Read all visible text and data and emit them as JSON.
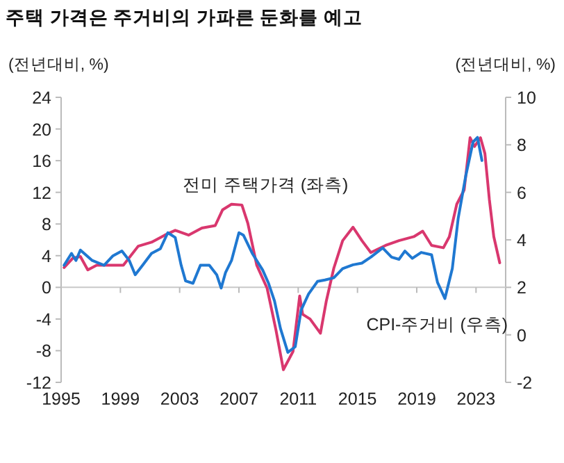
{
  "chart_data": {
    "type": "line",
    "title": "주택 가격은 주거비의 가파른 둔화를 예고",
    "ylabel": "(전년대비, %)",
    "y2label": "(전년대비, %)",
    "xlim": [
      1995,
      2025
    ],
    "xticks": [
      1995,
      1999,
      2003,
      2007,
      2011,
      2015,
      2019,
      2023
    ],
    "ylim": [
      -12,
      24
    ],
    "yticks": [
      -12,
      -8,
      -4,
      0,
      4,
      8,
      12,
      16,
      20,
      24
    ],
    "y2lim": [
      -2,
      10
    ],
    "y2ticks": [
      -2,
      0,
      2,
      4,
      6,
      8,
      10
    ],
    "ref_lines": [
      {
        "axis": "y",
        "value": 0,
        "color": "#c8c8c8"
      }
    ],
    "series": [
      {
        "name": "전미 주택가격 (좌측)",
        "color": "#d9376e",
        "x": [
          1995.2,
          1995.8,
          1996.3,
          1996.8,
          1997.4,
          1998.3,
          1999.2,
          2000.2,
          2001.1,
          2002.0,
          2002.7,
          2003.6,
          2004.5,
          2005.4,
          2005.9,
          2006.5,
          2007.2,
          2007.6,
          2008.2,
          2008.9,
          2009.5,
          2010.0,
          2010.65,
          2011.1,
          2011.3,
          2011.8,
          2012.5,
          2012.9,
          2013.4,
          2014.0,
          2014.7,
          2015.3,
          2015.9,
          2016.9,
          2017.8,
          2018.8,
          2019.4,
          2020.0,
          2020.8,
          2021.2,
          2021.7,
          2022.2,
          2022.6,
          2022.9,
          2023.3,
          2023.6,
          2023.9,
          2024.2,
          2024.6
        ],
        "values": [
          2.5,
          3.7,
          3.9,
          2.2,
          2.8,
          2.8,
          2.8,
          5.2,
          5.7,
          6.6,
          7.2,
          6.6,
          7.5,
          7.8,
          9.8,
          10.5,
          10.4,
          8.1,
          2.8,
          -0.1,
          -5.4,
          -10.4,
          -8.1,
          -1.1,
          -3.4,
          -4.0,
          -5.8,
          -1.7,
          2.4,
          5.9,
          7.6,
          5.9,
          4.4,
          5.3,
          5.9,
          6.4,
          7.1,
          5.3,
          5.0,
          6.4,
          10.5,
          12.3,
          18.9,
          17.8,
          18.9,
          16.9,
          11.1,
          6.4,
          3.1
        ]
      },
      {
        "name": "CPI-주거비 (우측)",
        "color": "#1f78d1",
        "axis": "y2",
        "x": [
          1995.2,
          1995.7,
          1996.0,
          1996.3,
          1997.1,
          1997.9,
          1998.5,
          1999.1,
          1999.6,
          2000.0,
          2000.5,
          2001.1,
          2001.7,
          2002.2,
          2002.7,
          2003.1,
          2003.4,
          2003.9,
          2004.4,
          2005.0,
          2005.5,
          2005.8,
          2006.1,
          2006.5,
          2007.0,
          2007.3,
          2007.9,
          2008.6,
          2009.0,
          2009.4,
          2009.8,
          2010.3,
          2010.8,
          2011.2,
          2011.7,
          2012.3,
          2012.8,
          2013.4,
          2014.0,
          2014.7,
          2015.3,
          2015.9,
          2016.7,
          2017.3,
          2017.8,
          2018.2,
          2018.7,
          2019.3,
          2020.0,
          2020.4,
          2020.9,
          2021.4,
          2021.8,
          2022.3,
          2022.8,
          2023.1,
          2023.4
        ],
        "values": [
          2.93,
          3.43,
          3.13,
          3.57,
          3.13,
          2.93,
          3.33,
          3.53,
          3.13,
          2.53,
          2.93,
          3.43,
          3.63,
          4.3,
          4.1,
          2.93,
          2.27,
          2.17,
          2.93,
          2.93,
          2.53,
          1.97,
          2.63,
          3.13,
          4.3,
          4.2,
          3.43,
          2.73,
          2.17,
          1.43,
          0.27,
          -0.74,
          -0.5,
          1.05,
          1.72,
          2.25,
          2.31,
          2.4,
          2.79,
          2.95,
          3.02,
          3.27,
          3.66,
          3.27,
          3.18,
          3.53,
          3.22,
          3.47,
          3.37,
          2.21,
          1.53,
          2.79,
          4.92,
          6.67,
          8.12,
          8.31,
          7.34
        ]
      }
    ]
  }
}
